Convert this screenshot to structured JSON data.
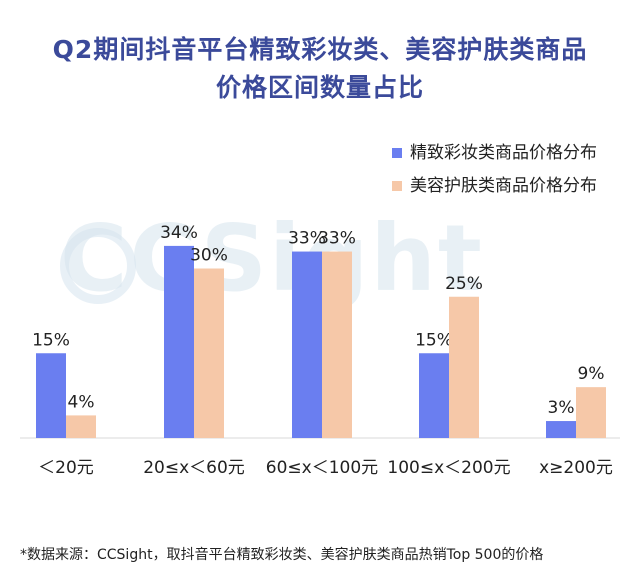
{
  "title_line1": "Q2期间抖音平台精致彩妆类、美容护肤类商品",
  "title_line2": "价格区间数量占比",
  "watermark": "CCSight",
  "source": "*数据来源：CCSight，取抖音平台精致彩妆类、美容护肤类商品热销Top 500的价格",
  "colors": {
    "series1": "#6a7ef0",
    "series2": "#f6c8a8",
    "title": "#3b4a9a"
  },
  "chart_data": {
    "type": "bar",
    "title": "Q2期间抖音平台精致彩妆类、美容护肤类商品价格区间数量占比",
    "categories": [
      "＜20元",
      "20≤x＜60元",
      "60≤x＜100元",
      "100≤x＜200元",
      "x≥200元"
    ],
    "series": [
      {
        "name": "精致彩妆类商品价格分布",
        "values": [
          15,
          34,
          33,
          15,
          3
        ],
        "labels": [
          "15%",
          "34%",
          "33%",
          "15%",
          "3%"
        ]
      },
      {
        "name": "美容护肤类商品价格分布",
        "values": [
          4,
          30,
          33,
          25,
          9
        ],
        "labels": [
          "4%",
          "30%",
          "33%",
          "25%",
          "9%"
        ]
      }
    ],
    "unit": "%",
    "ylim": [
      0,
      40
    ],
    "grid": false,
    "legend": "top-right"
  }
}
